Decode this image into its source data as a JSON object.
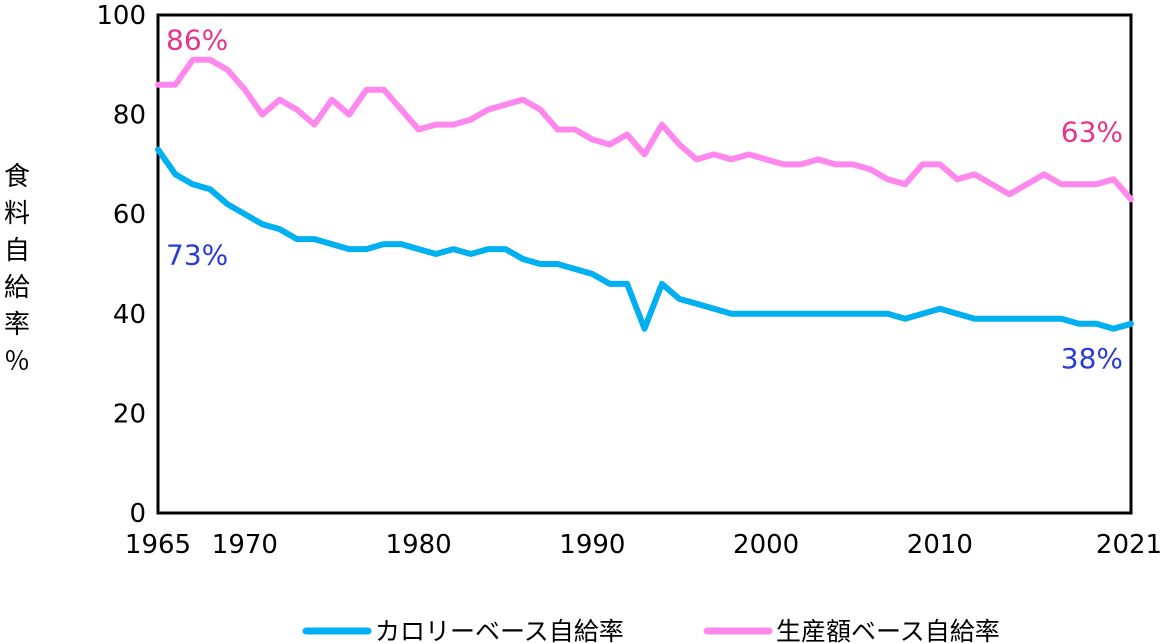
{
  "chart_data": {
    "type": "line",
    "ylabel": "食料自給率％",
    "ylim": [
      0,
      100
    ],
    "yticks": [
      0,
      20,
      40,
      60,
      80,
      100
    ],
    "xlim": [
      1965,
      2021
    ],
    "xticks": [
      1965,
      1970,
      1980,
      1990,
      2000,
      2010,
      2021
    ],
    "grid": false,
    "legend": "bottom",
    "x": [
      1965,
      1966,
      1967,
      1968,
      1969,
      1970,
      1971,
      1972,
      1973,
      1974,
      1975,
      1976,
      1977,
      1978,
      1979,
      1980,
      1981,
      1982,
      1983,
      1984,
      1985,
      1986,
      1987,
      1988,
      1989,
      1990,
      1991,
      1992,
      1993,
      1994,
      1995,
      1996,
      1997,
      1998,
      1999,
      2000,
      2001,
      2002,
      2003,
      2004,
      2005,
      2006,
      2007,
      2008,
      2009,
      2010,
      2011,
      2012,
      2013,
      2014,
      2015,
      2016,
      2017,
      2018,
      2019,
      2020,
      2021
    ],
    "series": [
      {
        "name": "カロリーベース自給率",
        "color": "#00b0f0",
        "values": [
          73,
          68,
          66,
          65,
          62,
          60,
          58,
          57,
          55,
          55,
          54,
          53,
          53,
          54,
          54,
          53,
          52,
          53,
          52,
          53,
          53,
          51,
          50,
          50,
          49,
          48,
          46,
          46,
          37,
          46,
          43,
          42,
          41,
          40,
          40,
          40,
          40,
          40,
          40,
          40,
          40,
          40,
          40,
          39,
          40,
          41,
          40,
          39,
          39,
          39,
          39,
          39,
          39,
          38,
          38,
          37,
          38
        ]
      },
      {
        "name": "生産額ベース自給率",
        "color": "#ff88ee",
        "values": [
          86,
          86,
          91,
          91,
          89,
          85,
          80,
          83,
          81,
          78,
          83,
          80,
          85,
          85,
          81,
          77,
          78,
          78,
          79,
          81,
          82,
          83,
          81,
          77,
          77,
          75,
          74,
          76,
          72,
          78,
          74,
          71,
          72,
          71,
          72,
          71,
          70,
          70,
          71,
          70,
          70,
          69,
          67,
          66,
          70,
          70,
          67,
          68,
          66,
          64,
          66,
          68,
          66,
          66,
          66,
          67,
          63
        ]
      }
    ],
    "annotations": [
      {
        "text": "86%",
        "x": 1965,
        "y": 86,
        "color": "#e8338b"
      },
      {
        "text": "73%",
        "x": 1965,
        "y": 73,
        "color": "#2a3bd8"
      },
      {
        "text": "63%",
        "x": 2021,
        "y": 63,
        "color": "#e8338b"
      },
      {
        "text": "38%",
        "x": 2021,
        "y": 38,
        "color": "#2a3bd8"
      }
    ]
  }
}
